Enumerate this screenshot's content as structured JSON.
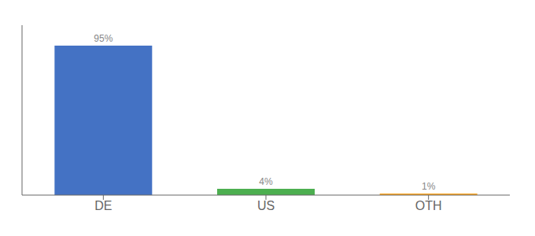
{
  "chart_data": {
    "type": "bar",
    "categories": [
      "DE",
      "US",
      "OTH"
    ],
    "values": [
      95,
      4,
      1
    ],
    "value_labels": [
      "95%",
      "4%",
      "1%"
    ],
    "colors": [
      "#4472c4",
      "#4caf50",
      "#ffa726"
    ],
    "ylim": [
      0,
      108
    ],
    "tick_labels": "x",
    "data_labels": true,
    "grid": false
  }
}
